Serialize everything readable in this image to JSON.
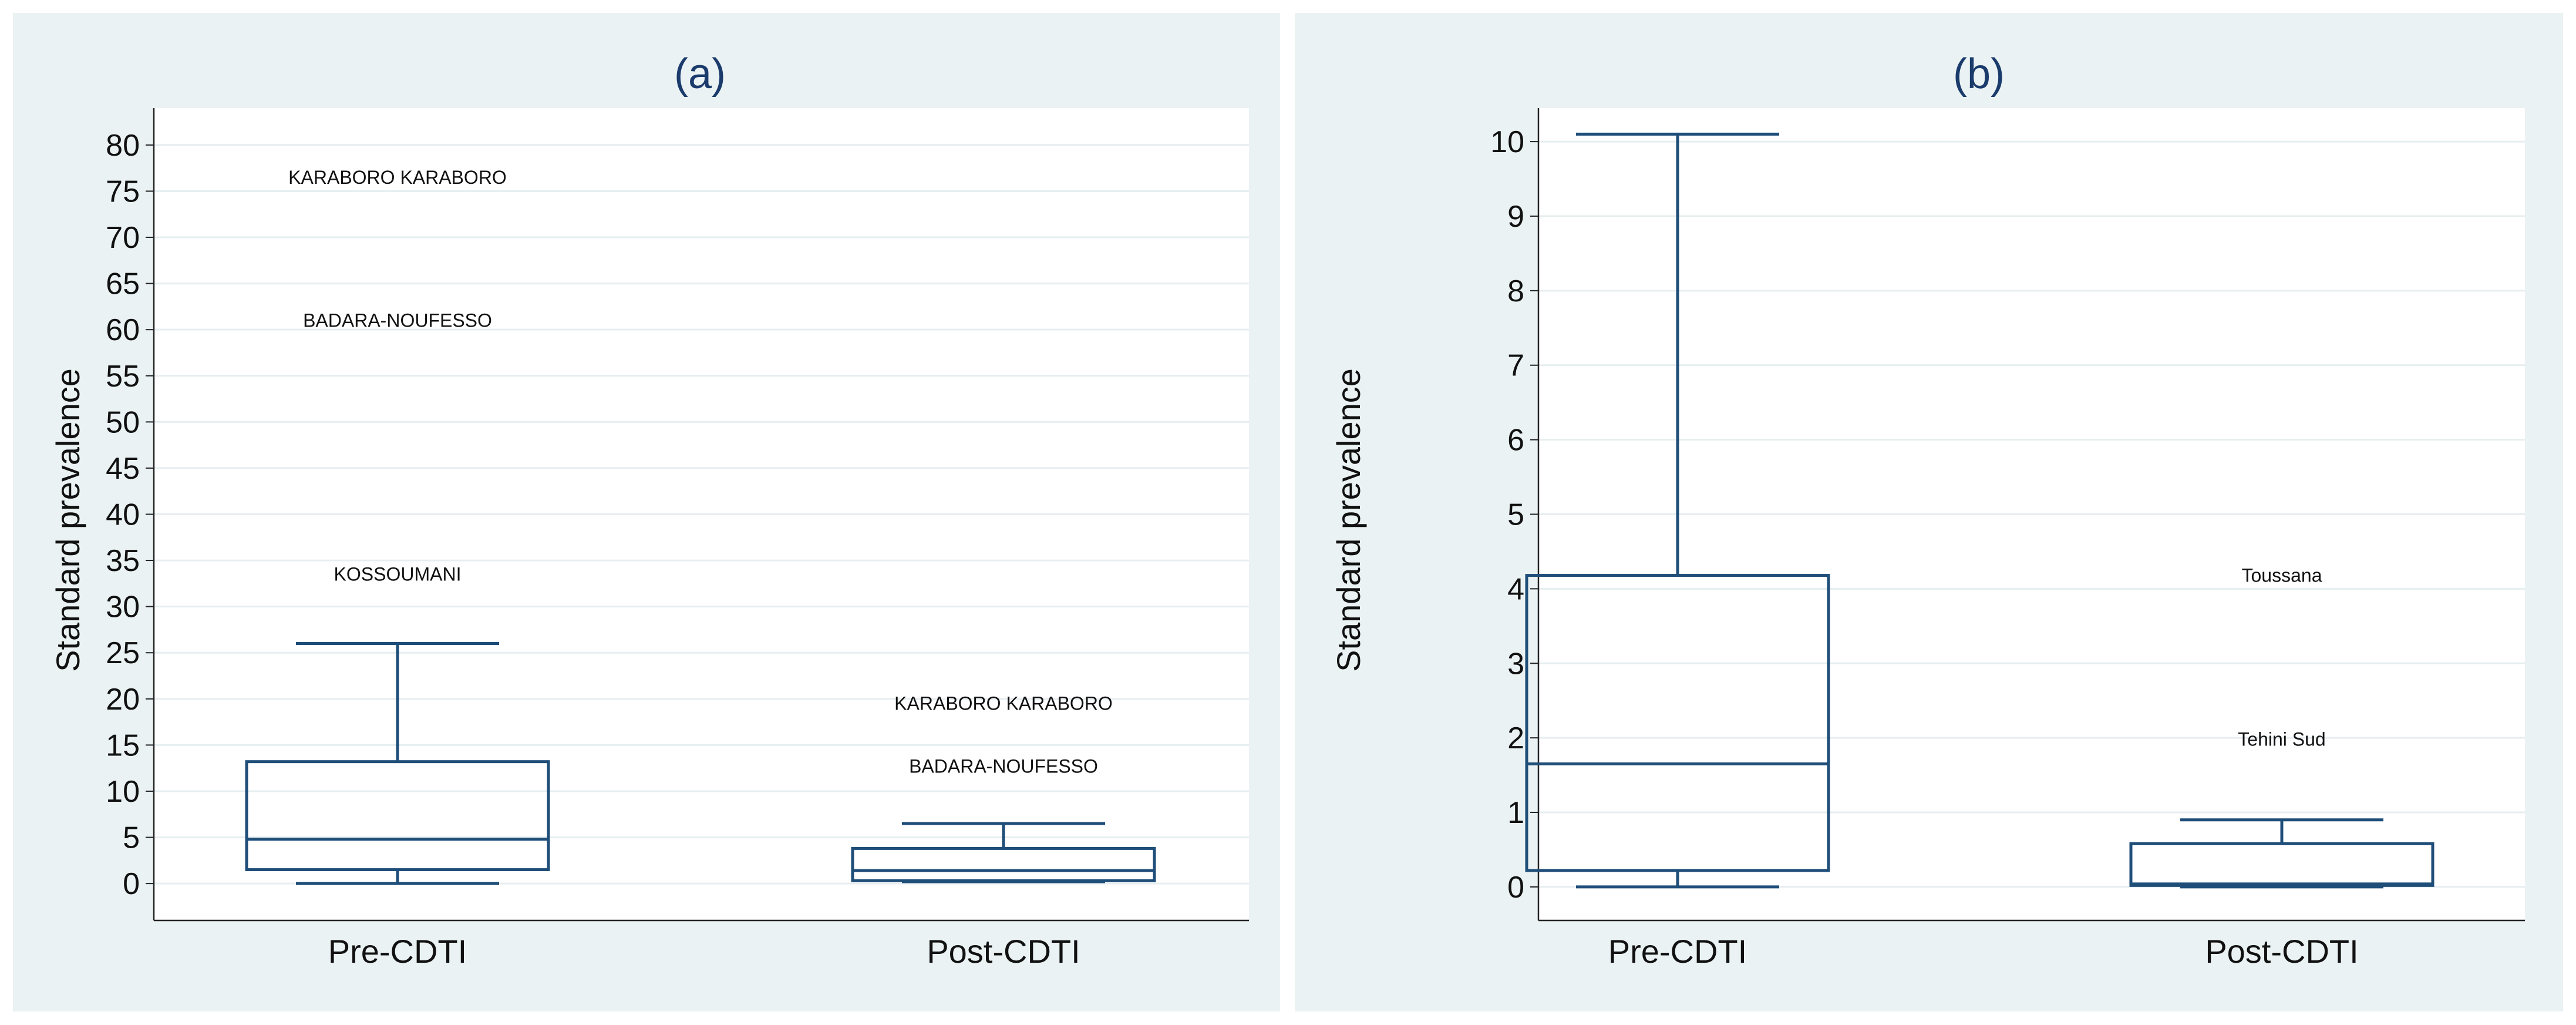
{
  "chart_data": [
    {
      "type": "box",
      "title": "(a)",
      "ylabel": "Standard prevalence",
      "xlabel": "",
      "ylim": [
        -4,
        84
      ],
      "yticks": [
        0,
        5,
        10,
        15,
        20,
        25,
        30,
        35,
        40,
        45,
        50,
        55,
        60,
        65,
        70,
        75,
        80
      ],
      "grid": true,
      "categories": [
        "Pre-CDTI",
        "Post-CDTI"
      ],
      "boxes": [
        {
          "category": "Pre-CDTI",
          "min": 0,
          "q1": 1.5,
          "median": 4.8,
          "q3": 13.2,
          "max": 26
        },
        {
          "category": "Post-CDTI",
          "min": 0.2,
          "q1": 0.3,
          "median": 1.4,
          "q3": 3.8,
          "max": 6.5
        }
      ],
      "outliers": [
        {
          "category": "Pre-CDTI",
          "value": 76.5,
          "label": "KARABORO KARABORO"
        },
        {
          "category": "Pre-CDTI",
          "value": 61,
          "label": "BADARA-NOUFESSO"
        },
        {
          "category": "Pre-CDTI",
          "value": 33.5,
          "label": "KOSSOUMANI"
        },
        {
          "category": "Post-CDTI",
          "value": 19.5,
          "label": "KARABORO KARABORO"
        },
        {
          "category": "Post-CDTI",
          "value": 12.7,
          "label": "BADARA-NOUFESSO"
        }
      ]
    },
    {
      "type": "box",
      "title": "(b)",
      "ylabel": "Standard prevalence",
      "xlabel": "",
      "ylim": [
        -0.45,
        10.45
      ],
      "yticks": [
        0,
        1,
        2,
        3,
        4,
        5,
        6,
        7,
        8,
        9,
        10
      ],
      "grid": true,
      "categories": [
        "Pre-CDTI",
        "Post-CDTI"
      ],
      "boxes": [
        {
          "category": "Pre-CDTI",
          "min": 0,
          "q1": 0.22,
          "median": 1.65,
          "q3": 4.18,
          "max": 10.1
        },
        {
          "category": "Post-CDTI",
          "min": 0,
          "q1": 0.02,
          "median": 0.04,
          "q3": 0.58,
          "max": 0.9
        }
      ],
      "outliers": [
        {
          "category": "Post-CDTI",
          "value": 4.18,
          "label": "Toussana"
        },
        {
          "category": "Post-CDTI",
          "value": 1.98,
          "label": "Tehini Sud"
        }
      ]
    }
  ],
  "colors": {
    "panel_bg": "#eaf2f3",
    "plot_bg": "#ffffff",
    "grid": "#e6eef0",
    "box": "#1f4e79",
    "title": "#1a3b6b",
    "text": "#111111"
  }
}
